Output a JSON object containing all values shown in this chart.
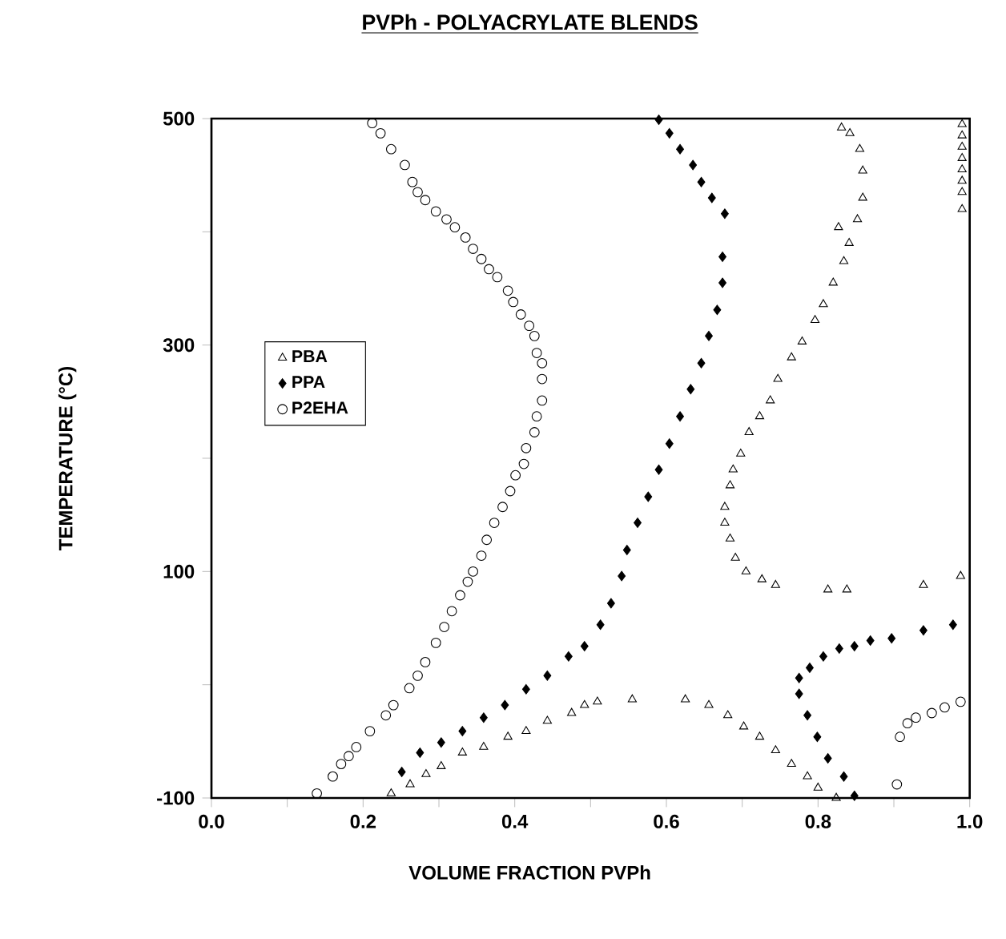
{
  "chart_data": {
    "type": "scatter",
    "title": "PVPh - POLYACRYLATE BLENDS",
    "xlabel": "VOLUME FRACTION PVPh",
    "ylabel": "TEMPERATURE  (°C)",
    "xlim": [
      0,
      1
    ],
    "ylim": [
      -100,
      500
    ],
    "xticks": [
      {
        "value": 0,
        "label": "0.0"
      },
      {
        "value": 0.1,
        "label": null
      },
      {
        "value": 0.2,
        "label": "0.2"
      },
      {
        "value": 0.3,
        "label": null
      },
      {
        "value": 0.4,
        "label": "0.4"
      },
      {
        "value": 0.5,
        "label": null
      },
      {
        "value": 0.6,
        "label": "0.6"
      },
      {
        "value": 0.7,
        "label": null
      },
      {
        "value": 0.8,
        "label": "0.8"
      },
      {
        "value": 0.9,
        "label": null
      },
      {
        "value": 1,
        "label": "1.0"
      }
    ],
    "yticks": [
      -100,
      {
        "value": 0,
        "label": null
      },
      100,
      {
        "value": 200,
        "label": null
      },
      300,
      {
        "value": 400,
        "label": null
      },
      500
    ],
    "legend": "left",
    "grid": false,
    "series": [
      {
        "name": "PBA",
        "color": "#000000",
        "marker": "triangle",
        "x": [
          0.237,
          0.262,
          0.283,
          0.303,
          0.331,
          0.359,
          0.391,
          0.415,
          0.443,
          0.475,
          0.492,
          0.509,
          0.555,
          0.625,
          0.656,
          0.681,
          0.702,
          0.723,
          0.744,
          0.765,
          0.786,
          0.8,
          0.824,
          0.726,
          0.744,
          0.813,
          0.838,
          0.939,
          0.988,
          0.705,
          0.691,
          0.684,
          0.677,
          0.677,
          0.684,
          0.688,
          0.698,
          0.709,
          0.723,
          0.737,
          0.747,
          0.765,
          0.779,
          0.796,
          0.807,
          0.82,
          0.834,
          0.827,
          0.841,
          0.852,
          0.859,
          0.859,
          0.855,
          0.842,
          0.831,
          0.99,
          0.99,
          0.99,
          0.99,
          0.99,
          0.99,
          0.99,
          0.99
        ],
        "values": [
          -96,
          -88,
          -79,
          -72,
          -60,
          -55,
          -46,
          -41,
          -32,
          -25,
          -18,
          -15,
          -13,
          -13,
          -18,
          -27,
          -37,
          -46,
          -58,
          -70,
          -81,
          -91,
          -100,
          93,
          88,
          84,
          84,
          88,
          96,
          100,
          112,
          129,
          143,
          157,
          176,
          190,
          204,
          223,
          237,
          251,
          270,
          289,
          303,
          322,
          336,
          355,
          374,
          404,
          390,
          411,
          430,
          454,
          473,
          487,
          492,
          495,
          485,
          475,
          465,
          455,
          445,
          435,
          420
        ]
      },
      {
        "name": "PPA",
        "color": "#000000",
        "marker": "diamond",
        "x": [
          0.251,
          0.275,
          0.303,
          0.331,
          0.359,
          0.387,
          0.415,
          0.443,
          0.471,
          0.492,
          0.513,
          0.527,
          0.541,
          0.548,
          0.562,
          0.576,
          0.59,
          0.604,
          0.618,
          0.632,
          0.646,
          0.656,
          0.667,
          0.674,
          0.674,
          0.677,
          0.66,
          0.646,
          0.635,
          0.618,
          0.604,
          0.59,
          0.848,
          0.834,
          0.813,
          0.799,
          0.786,
          0.775,
          0.775,
          0.789,
          0.807,
          0.828,
          0.848,
          0.869,
          0.897,
          0.939,
          0.978
        ],
        "values": [
          -77,
          -60,
          -51,
          -41,
          -29,
          -18,
          -4,
          8,
          25,
          34,
          53,
          72,
          96,
          119,
          143,
          166,
          190,
          213,
          237,
          261,
          284,
          308,
          331,
          355,
          378,
          416,
          430,
          444,
          459,
          473,
          487,
          499,
          -98,
          -81,
          -65,
          -46,
          -27,
          -8,
          6,
          15,
          25,
          32,
          34,
          39,
          41,
          48,
          53
        ]
      },
      {
        "name": "P2EHA",
        "color": "#000000",
        "marker": "circle",
        "x": [
          0.212,
          0.223,
          0.237,
          0.255,
          0.265,
          0.272,
          0.282,
          0.296,
          0.31,
          0.321,
          0.335,
          0.345,
          0.356,
          0.366,
          0.377,
          0.391,
          0.398,
          0.408,
          0.419,
          0.426,
          0.429,
          0.436,
          0.436,
          0.436,
          0.429,
          0.426,
          0.415,
          0.412,
          0.401,
          0.394,
          0.384,
          0.373,
          0.363,
          0.356,
          0.345,
          0.338,
          0.328,
          0.317,
          0.307,
          0.296,
          0.282,
          0.272,
          0.261,
          0.24,
          0.23,
          0.209,
          0.191,
          0.181,
          0.171,
          0.16,
          0.139,
          0.904,
          0.908,
          0.918,
          0.929,
          0.95,
          0.967,
          0.988
        ],
        "values": [
          496,
          487,
          473,
          459,
          444,
          435,
          428,
          418,
          411,
          404,
          395,
          385,
          376,
          367,
          360,
          348,
          338,
          327,
          317,
          308,
          293,
          284,
          270,
          251,
          237,
          223,
          209,
          195,
          185,
          171,
          157,
          143,
          128,
          114,
          100,
          91,
          79,
          65,
          51,
          37,
          20,
          8,
          -3,
          -18,
          -27,
          -41,
          -55,
          -63,
          -70,
          -81,
          -96,
          -88,
          -46,
          -34,
          -29,
          -25,
          -20,
          -15
        ]
      }
    ]
  }
}
